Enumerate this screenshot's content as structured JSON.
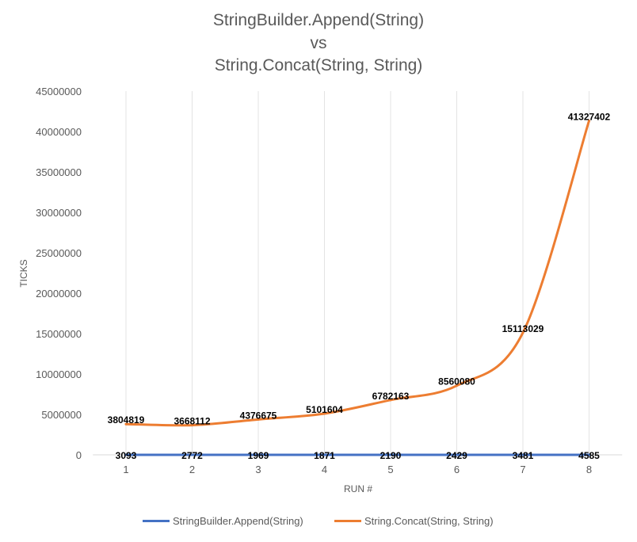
{
  "chart_data": {
    "type": "line",
    "title_lines": [
      "StringBuilder.Append(String)",
      "vs",
      "String.Concat(String, String)"
    ],
    "xlabel": "RUN #",
    "ylabel": "TICKS",
    "categories": [
      "1",
      "2",
      "3",
      "4",
      "5",
      "6",
      "7",
      "8"
    ],
    "ylim": [
      0,
      45000000
    ],
    "yticks": [
      "0",
      "5000000",
      "10000000",
      "15000000",
      "20000000",
      "25000000",
      "30000000",
      "35000000",
      "40000000",
      "45000000"
    ],
    "grid": "vertical",
    "smooth": true,
    "legend_position": "bottom",
    "series": [
      {
        "name": "StringBuilder.Append(String)",
        "color": "#4472C4",
        "values": [
          3093,
          2772,
          1969,
          1871,
          2190,
          2429,
          3481,
          4585
        ]
      },
      {
        "name": "String.Concat(String, String)",
        "color": "#ED7D31",
        "values": [
          3804819,
          3668112,
          4376675,
          5101604,
          6782163,
          8560080,
          15113029,
          41327402
        ]
      }
    ]
  }
}
